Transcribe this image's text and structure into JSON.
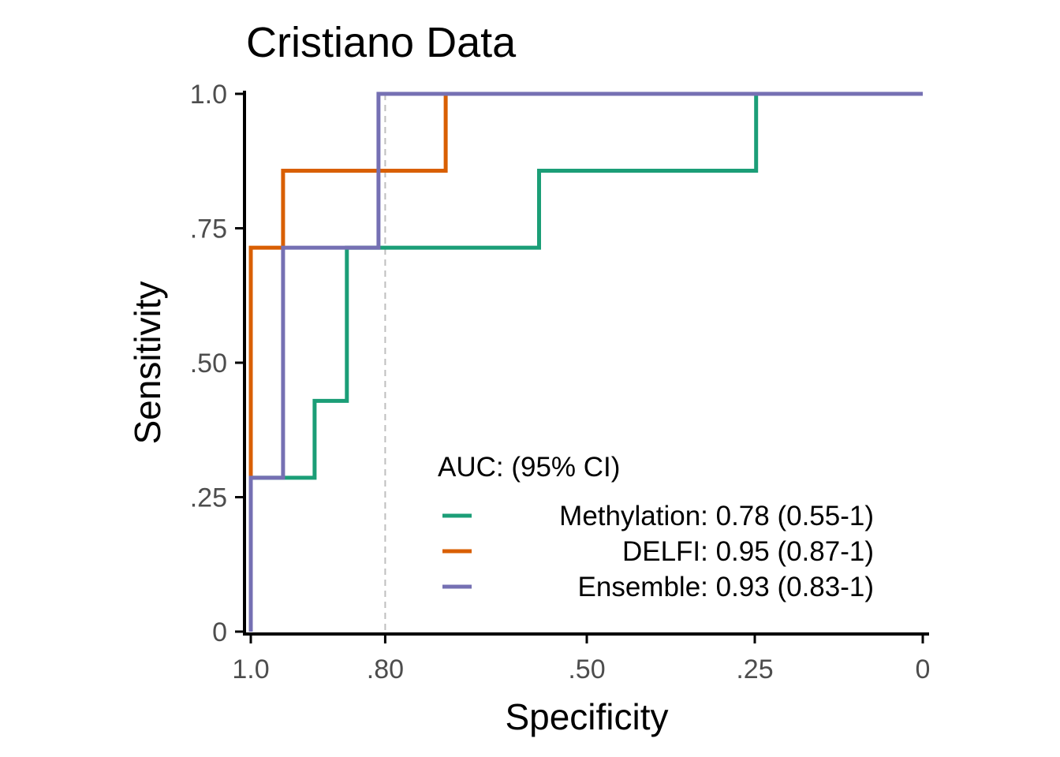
{
  "chart_data": {
    "type": "line",
    "title": "Cristiano Data",
    "xlabel": "Specificity",
    "ylabel": "Sensitivity",
    "x_reversed": true,
    "xlim": [
      1.0,
      0
    ],
    "ylim": [
      0,
      1.0
    ],
    "x_ticks": [
      {
        "value": 1.0,
        "label": "1.0"
      },
      {
        "value": 0.8,
        "label": ".80"
      },
      {
        "value": 0.5,
        "label": ".50"
      },
      {
        "value": 0.25,
        "label": ".25"
      },
      {
        "value": 0,
        "label": "0"
      }
    ],
    "y_ticks": [
      {
        "value": 0,
        "label": "0"
      },
      {
        "value": 0.25,
        "label": ".25"
      },
      {
        "value": 0.5,
        "label": ".50"
      },
      {
        "value": 0.75,
        "label": ".75"
      },
      {
        "value": 1.0,
        "label": "1.0"
      }
    ],
    "reference_line": {
      "x": 0.8,
      "style": "dashed",
      "color": "#bfbfbf"
    },
    "grid": false,
    "legend": {
      "title": "AUC: (95% CI)",
      "position": "bottom-right"
    },
    "series": [
      {
        "name": "Methylation: 0.78 (0.55-1)",
        "color": "#1b9e77",
        "points": [
          [
            1.0,
            0
          ],
          [
            1.0,
            0.286
          ],
          [
            0.905,
            0.286
          ],
          [
            0.905,
            0.429
          ],
          [
            0.857,
            0.429
          ],
          [
            0.857,
            0.714
          ],
          [
            0.571,
            0.714
          ],
          [
            0.571,
            0.857
          ],
          [
            0.248,
            0.857
          ],
          [
            0.248,
            1.0
          ],
          [
            0,
            1.0
          ]
        ]
      },
      {
        "name": "DELFI: 0.95 (0.87-1)",
        "color": "#d95f02",
        "points": [
          [
            1.0,
            0
          ],
          [
            1.0,
            0.714
          ],
          [
            0.952,
            0.714
          ],
          [
            0.952,
            0.857
          ],
          [
            0.71,
            0.857
          ],
          [
            0.71,
            1.0
          ],
          [
            0,
            1.0
          ]
        ]
      },
      {
        "name": "Ensemble: 0.93 (0.83-1)",
        "color": "#7570b3",
        "points": [
          [
            1.0,
            0
          ],
          [
            1.0,
            0.286
          ],
          [
            0.952,
            0.286
          ],
          [
            0.952,
            0.714
          ],
          [
            0.81,
            0.714
          ],
          [
            0.81,
            1.0
          ],
          [
            0,
            1.0
          ]
        ]
      }
    ]
  }
}
